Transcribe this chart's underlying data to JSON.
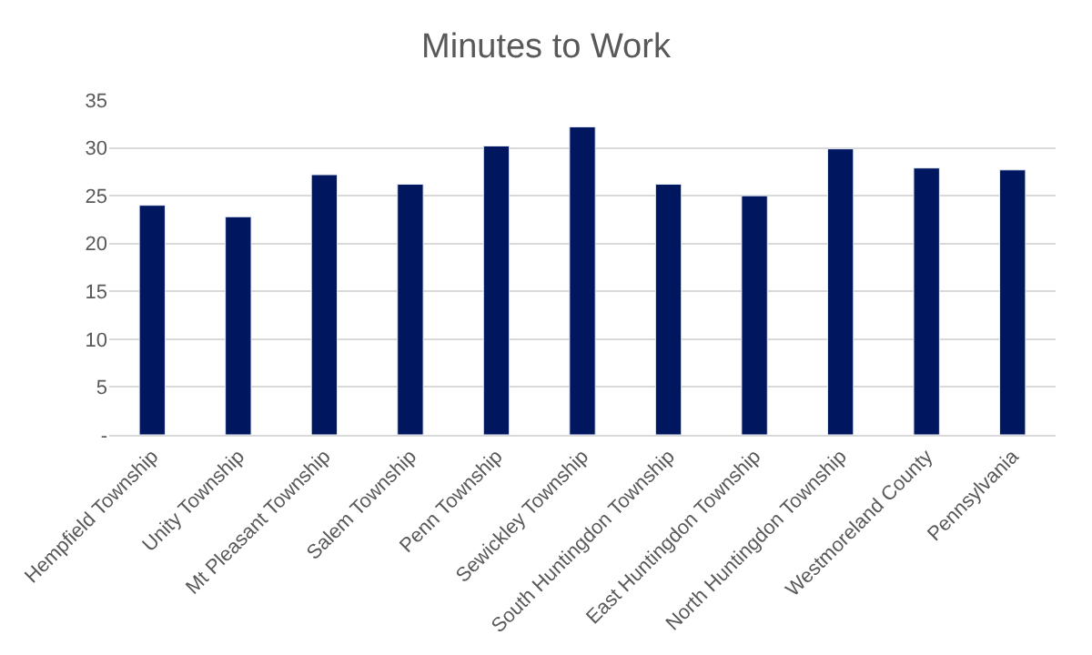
{
  "chart_data": {
    "type": "bar",
    "title": "Minutes to Work",
    "categories": [
      "Hempfield Township",
      "Unity Township",
      "Mt Pleasant Township",
      "Salem Township",
      "Penn Township",
      "Sewickley Township",
      "South Huntingdon Township",
      "East Huntingdon Township",
      "North Huntingdon Township",
      "Westmoreland County",
      "Pennsylvania"
    ],
    "values": [
      24.0,
      22.8,
      27.2,
      26.2,
      30.2,
      32.2,
      26.2,
      25.0,
      29.9,
      27.9,
      27.7
    ],
    "color": "#001760",
    "ylim": [
      0,
      35
    ],
    "yticks": [
      {
        "value": 0,
        "label": "-"
      },
      5,
      10,
      15,
      20,
      25,
      30,
      35
    ],
    "grid": "y"
  }
}
